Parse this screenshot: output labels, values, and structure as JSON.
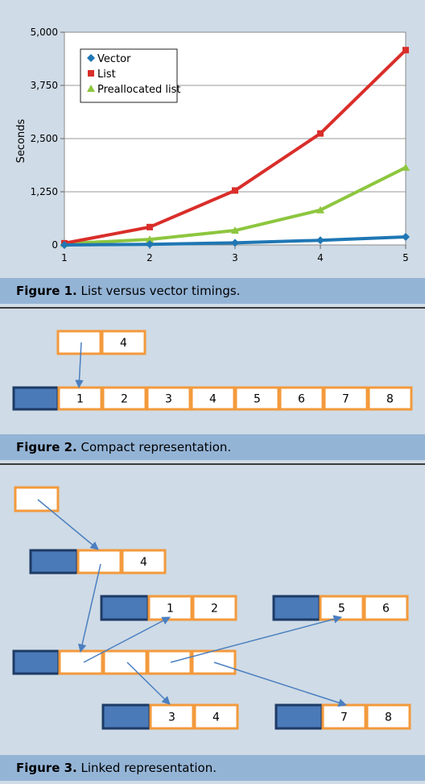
{
  "figure1": {
    "caption_bold": "Figure 1.",
    "caption_text": " List versus vector timings."
  },
  "figure2": {
    "caption_bold": "Figure 2.",
    "caption_text": " Compact representation.",
    "top_cells": [
      "",
      "4"
    ],
    "main_cells": [
      "1",
      "2",
      "3",
      "4",
      "5",
      "6",
      "7",
      "8"
    ]
  },
  "figure3": {
    "caption_bold": "Figure 3.",
    "caption_text": " Linked representation.",
    "root_cells": [
      ""
    ],
    "level1_cells": [
      "",
      "4"
    ],
    "chunk_a_cells": [
      "1",
      "2"
    ],
    "chunk_b_cells": [
      "5",
      "6"
    ],
    "spine_cells": [
      "",
      "",
      "",
      ""
    ],
    "chunk_c_cells": [
      "3",
      "4"
    ],
    "chunk_d_cells": [
      "7",
      "8"
    ]
  },
  "chart_data": {
    "type": "line",
    "title": "",
    "xlabel": "",
    "ylabel": "Seconds",
    "x": [
      1,
      2,
      3,
      4,
      5
    ],
    "xticks": [
      "1",
      "2",
      "3",
      "4",
      "5"
    ],
    "ylim": [
      0,
      5000
    ],
    "yticks": [
      "0",
      "1,250",
      "2,500",
      "3,750",
      "5,000"
    ],
    "ytick_values": [
      0,
      1250,
      2500,
      3750,
      5000
    ],
    "grid": true,
    "legend_position": "top-left",
    "series": [
      {
        "name": "Vector",
        "color": "#1f77b4",
        "marker": "diamond",
        "values": [
          0,
          15,
          50,
          110,
          190
        ]
      },
      {
        "name": "List",
        "color": "#d92e2a",
        "marker": "square",
        "values": [
          40,
          420,
          1280,
          2620,
          4580
        ]
      },
      {
        "name": "Preallocated list",
        "color": "#8dc63f",
        "marker": "triangle",
        "values": [
          30,
          130,
          340,
          820,
          1820
        ]
      }
    ]
  },
  "colors": {
    "panel_bg": "#cfdbe6",
    "caption_bg": "#94b4d6",
    "cell_border": "#f39a3c",
    "header_fill": "#4a7ab8",
    "header_border": "#1d3b66",
    "arrow": "#4a7fc0"
  }
}
